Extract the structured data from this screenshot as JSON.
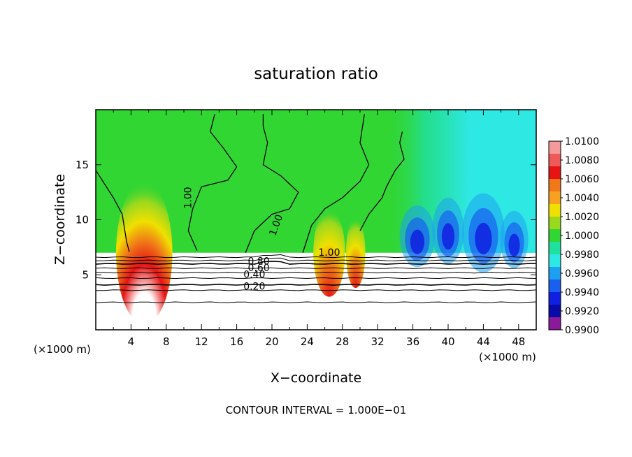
{
  "chart_data": {
    "type": "heatmap",
    "title": "saturation ratio",
    "xlabel": "X−coordinate",
    "ylabel": "Z−coordinate",
    "x_unit_left": "(×1000 m)",
    "x_unit_right": "(×1000 m)",
    "footer": "CONTOUR INTERVAL = 1.000E−01",
    "xlim": [
      0,
      50
    ],
    "ylim": [
      0,
      20
    ],
    "x_ticks": [
      "4",
      "8",
      "12",
      "16",
      "20",
      "24",
      "28",
      "32",
      "36",
      "40",
      "44",
      "48"
    ],
    "y_ticks": [
      "5",
      "10",
      "15"
    ],
    "colorbar": {
      "labels": [
        "1.0100",
        "1.0080",
        "1.0060",
        "1.0040",
        "1.0020",
        "1.0000",
        "0.9980",
        "0.9960",
        "0.9940",
        "0.9920",
        "0.9900"
      ],
      "colors": [
        "#f59a9a",
        "#ee5a5a",
        "#e61414",
        "#f07818",
        "#f7a021",
        "#f0e000",
        "#9ad81e",
        "#31d633",
        "#20e0a0",
        "#2ee8e4",
        "#1ea0f0",
        "#1a60f0",
        "#1020e0",
        "#0a0aa8",
        "#8a1a9a"
      ]
    },
    "contour_labels": [
      "1.00",
      "1.00",
      "1.00",
      "0.80",
      "0.60",
      "0.40",
      "0.20"
    ],
    "contour_line_levels": [
      6.6,
      6.3,
      6.0,
      5.6,
      5.2,
      4.7,
      4.1,
      3.6,
      2.5
    ],
    "regions": {
      "inversion_top_z": 7.0,
      "blobs": [
        {
          "x": 5.5,
          "z": 7,
          "half_width": 3.2,
          "height": 6.5,
          "peak": "1.0100"
        },
        {
          "x": 26.5,
          "z": 7,
          "half_width": 1.8,
          "height": 4.0,
          "peak": "1.0080"
        },
        {
          "x": 29.5,
          "z": 7,
          "half_width": 1.1,
          "height": 3.2,
          "peak": "1.0060"
        }
      ],
      "dry_zone_x": [
        33,
        50
      ],
      "dry_zone_min": "0.9920"
    }
  }
}
